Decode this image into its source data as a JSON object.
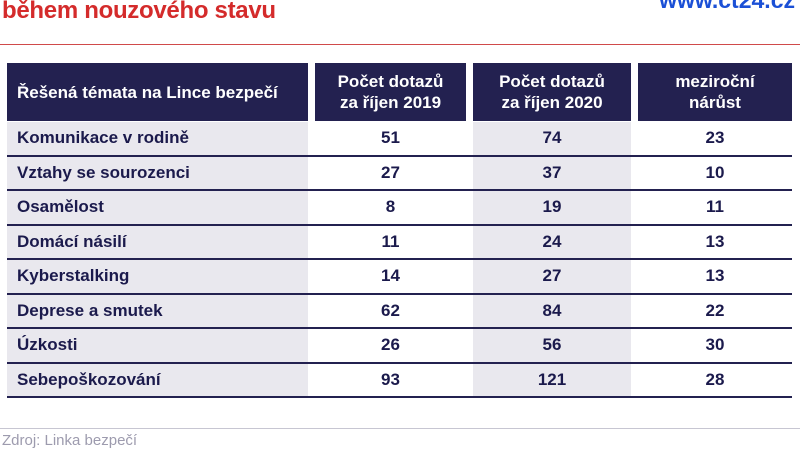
{
  "header": {
    "title_line": "během nouzového stavu",
    "website": "www.ct24.cz"
  },
  "footer": {
    "source": "Zdroj: Linka bezpečí"
  },
  "table": {
    "headers": [
      {
        "lines": [
          "Řešená témata na Lince bezpečí"
        ]
      },
      {
        "lines": [
          "Počet dotazů",
          "za říjen 2019"
        ]
      },
      {
        "lines": [
          "Počet dotazů",
          "za říjen 2020"
        ]
      },
      {
        "lines": [
          "meziroční",
          "nárůst"
        ]
      }
    ],
    "rows": [
      {
        "topic": "Komunikace v rodině",
        "values": [
          "51",
          "74",
          "23"
        ]
      },
      {
        "topic": "Vztahy se sourozenci",
        "values": [
          "27",
          "37",
          "10"
        ]
      },
      {
        "topic": "Osamělost",
        "values": [
          "8",
          "19",
          "11"
        ]
      },
      {
        "topic": "Domácí násilí",
        "values": [
          "11",
          "24",
          "13"
        ]
      },
      {
        "topic": "Kyberstalking",
        "values": [
          "14",
          "27",
          "13"
        ]
      },
      {
        "topic": "Deprese a smutek",
        "values": [
          "62",
          "84",
          "22"
        ]
      },
      {
        "topic": "Úzkosti",
        "values": [
          "26",
          "56",
          "30"
        ]
      },
      {
        "topic": "Sebepoškozování",
        "values": [
          "93",
          "121",
          "28"
        ]
      }
    ]
  },
  "chart_data": {
    "type": "table",
    "title": "během nouzového stavu",
    "columns": [
      "Řešená témata na Lince bezpečí",
      "Počet dotazů za říjen 2019",
      "Počet dotazů za říjen 2020",
      "meziroční nárůst"
    ],
    "rows": [
      [
        "Komunikace v rodině",
        51,
        74,
        23
      ],
      [
        "Vztahy se sourozenci",
        27,
        37,
        10
      ],
      [
        "Osamělost",
        8,
        19,
        11
      ],
      [
        "Domácí násilí",
        11,
        24,
        13
      ],
      [
        "Kyberstalking",
        14,
        27,
        13
      ],
      [
        "Deprese a smutek",
        62,
        84,
        22
      ],
      [
        "Úzkosti",
        26,
        56,
        30
      ],
      [
        "Sebepoškozování",
        93,
        121,
        28
      ]
    ],
    "source": "Zdroj: Linka bezpečí",
    "website": "www.ct24.cz"
  },
  "colors": {
    "title_red": "#d42b2b",
    "rule_red": "#d04a4a",
    "logo_blue": "#1b50d6",
    "header_navy": "#232150",
    "text_navy": "#1b1a4c",
    "shaded_column": "#e9e8ee",
    "source_gray": "#9d9bae",
    "footer_rule_gray": "#c7c6d2"
  }
}
